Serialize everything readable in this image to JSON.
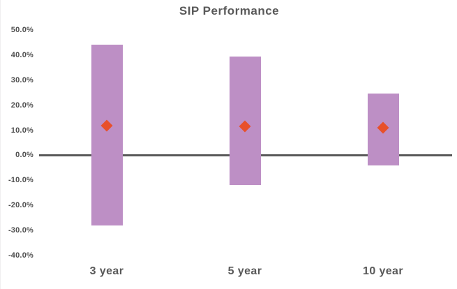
{
  "title": "SIP Performance",
  "colors": {
    "bar_fill": "#bd8fc5",
    "diamond_fill": "#e8502b",
    "axis_line": "#595959",
    "text": "#595959"
  },
  "chart_data": {
    "type": "bar",
    "subtype": "floating-range-bars-with-diamond-markers",
    "title": "SIP Performance",
    "categories": [
      "3 year",
      "5 year",
      "10 year"
    ],
    "series": [
      {
        "name": "range-high",
        "values": [
          44.0,
          39.5,
          24.5
        ]
      },
      {
        "name": "range-low",
        "values": [
          -28.0,
          -12.0,
          -4.0
        ]
      },
      {
        "name": "diamond-marker",
        "values": [
          11.8,
          11.6,
          11.0
        ]
      }
    ],
    "ylim": [
      -40,
      50
    ],
    "ytick_step": 10,
    "ytick_labels": [
      "50.0%",
      "40.0%",
      "30.0%",
      "20.0%",
      "10.0%",
      "0.0%",
      "-10.0%",
      "-20.0%",
      "-30.0%",
      "-40.0%"
    ],
    "xlabel": "",
    "ylabel": "",
    "grid": false,
    "legend": "none",
    "zero_axis_line": true
  }
}
